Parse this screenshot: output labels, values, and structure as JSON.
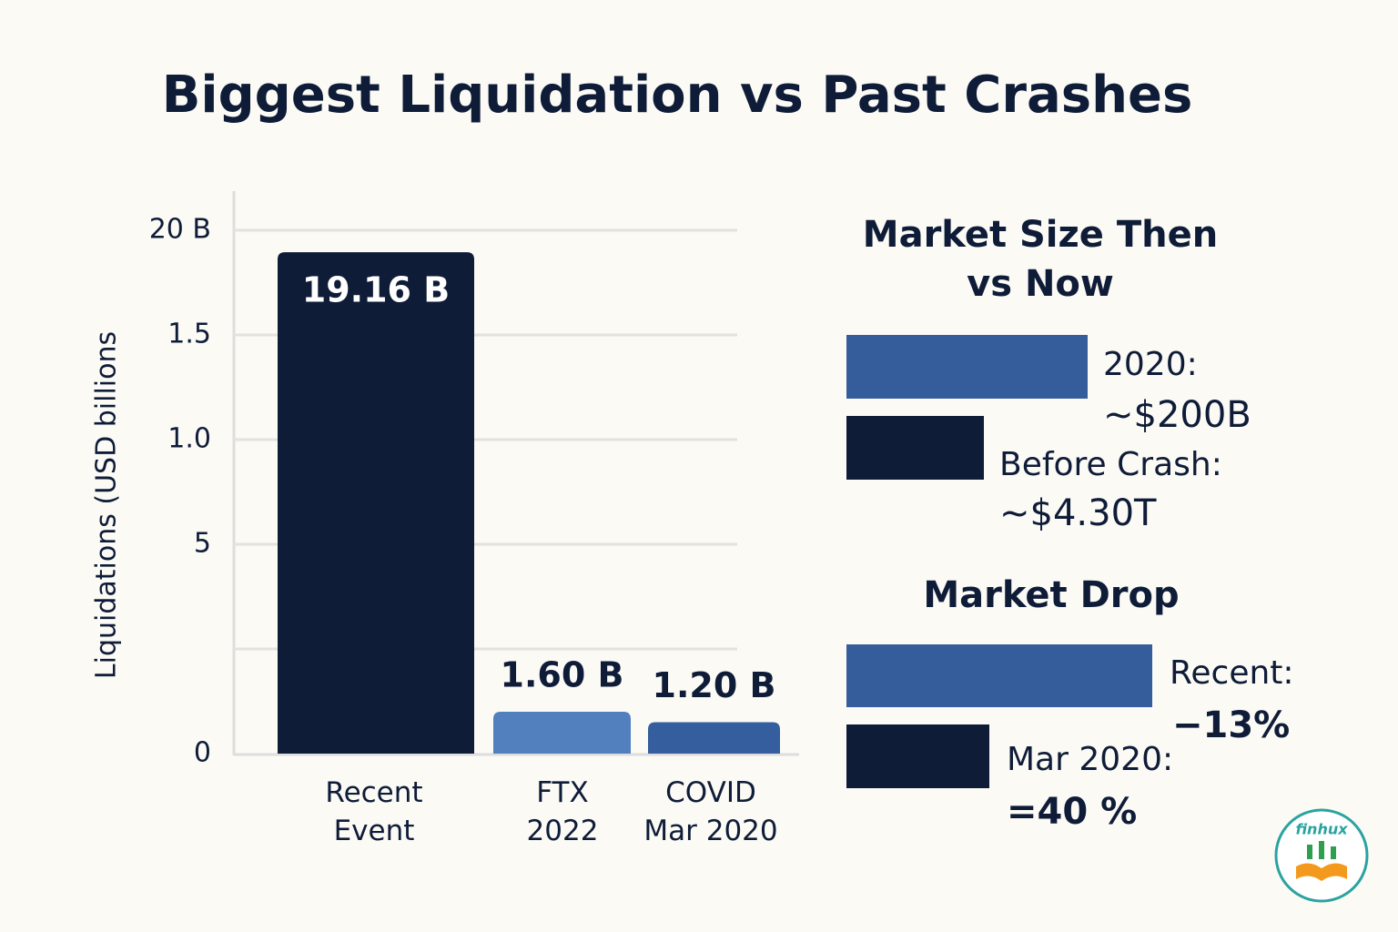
{
  "chart_data": {
    "type": "bar",
    "title": "Biggest Liquidation vs Past Crashes",
    "y_label": "Liquidations (USD billions",
    "categories": [
      "Recent Event",
      "FTX\n2022",
      "COVID\nMar 2020"
    ],
    "values": [
      19.16,
      1.6,
      1.2
    ],
    "value_labels": [
      "19.16 B",
      "1.60 B",
      "1.20 B"
    ],
    "colors": [
      "#0f1c38",
      "#5280bf",
      "#355e9e"
    ],
    "ylim": [
      0,
      22
    ],
    "yticks": [
      0,
      {
        "value": 4,
        "label": null
      },
      {
        "value": 8,
        "label": "5"
      },
      {
        "value": 12,
        "label": "1.0"
      },
      {
        "value": 16,
        "label": "1.5"
      },
      {
        "value": 20,
        "label": "20 B"
      }
    ],
    "grid": true
  },
  "market_size": {
    "title_lines": [
      "Market Size Then",
      "vs Now"
    ],
    "items": [
      {
        "label": "2020:",
        "value": "~$200B"
      },
      {
        "label": "Before Crash:",
        "value": "~$4.30T"
      }
    ]
  },
  "market_drop": {
    "title": "Market Drop",
    "items": [
      {
        "label": "Recent:",
        "value": "−13%"
      },
      {
        "label": "Mar 2020:",
        "value": "=40 %"
      }
    ]
  },
  "logo": "finhux"
}
